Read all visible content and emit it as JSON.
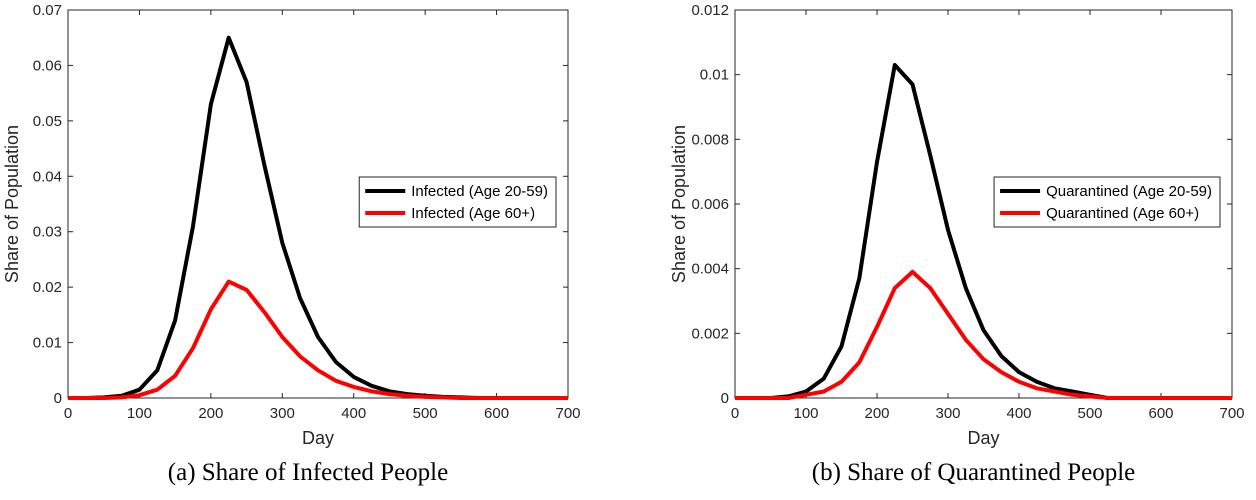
{
  "chart_data": [
    {
      "type": "line",
      "title": "(a) Share of Infected People",
      "xlabel": "Day",
      "ylabel": "Share of Population",
      "x": [
        0,
        25,
        50,
        75,
        100,
        125,
        150,
        175,
        200,
        225,
        250,
        275,
        300,
        325,
        350,
        375,
        400,
        425,
        450,
        475,
        500,
        525,
        550,
        575,
        600,
        625,
        650,
        675,
        700
      ],
      "series": [
        {
          "name": "Infected (Age 20-59)",
          "color": "#000000",
          "values": [
            0,
            0,
            0.0001,
            0.0004,
            0.0015,
            0.005,
            0.014,
            0.031,
            0.053,
            0.065,
            0.057,
            0.042,
            0.028,
            0.018,
            0.011,
            0.0065,
            0.0038,
            0.0022,
            0.0012,
            0.0007,
            0.0004,
            0.0002,
            0.0001,
            0,
            0,
            0,
            0,
            0,
            0
          ]
        },
        {
          "name": "Infected (Age 60+)",
          "color": "#ff0000",
          "values": [
            0,
            0,
            0,
            0.0001,
            0.0005,
            0.0015,
            0.004,
            0.009,
            0.016,
            0.021,
            0.0195,
            0.0155,
            0.011,
            0.0075,
            0.005,
            0.0031,
            0.002,
            0.0012,
            0.0007,
            0.0004,
            0.0002,
            0.0001,
            0,
            0,
            0,
            0,
            0,
            0,
            0
          ]
        }
      ],
      "xlim": [
        0,
        700
      ],
      "xticks": [
        0,
        100,
        200,
        300,
        400,
        500,
        600,
        700
      ],
      "ylim": [
        0,
        0.07
      ],
      "yticks": [
        0,
        0.01,
        0.02,
        0.03,
        0.04,
        0.05,
        0.06,
        0.07
      ],
      "legend": "east",
      "grid": false
    },
    {
      "type": "line",
      "title": "(b) Share of Quarantined People",
      "xlabel": "Day",
      "ylabel": "Share of Population",
      "x": [
        0,
        25,
        50,
        75,
        100,
        125,
        150,
        175,
        200,
        225,
        250,
        275,
        300,
        325,
        350,
        375,
        400,
        425,
        450,
        475,
        500,
        525,
        550,
        575,
        600,
        625,
        650,
        675,
        700
      ],
      "series": [
        {
          "name": "Quarantined (Age 20-59)",
          "color": "#000000",
          "values": [
            0,
            0,
            0,
            5e-05,
            0.0002,
            0.0006,
            0.0016,
            0.0037,
            0.0073,
            0.0103,
            0.0097,
            0.0075,
            0.0052,
            0.0034,
            0.0021,
            0.0013,
            0.0008,
            0.0005,
            0.0003,
            0.0002,
            0.0001,
            0,
            0,
            0,
            0,
            0,
            0,
            0,
            0
          ]
        },
        {
          "name": "Quarantined (Age 60+)",
          "color": "#ff0000",
          "values": [
            0,
            0,
            0,
            0,
            0.0001,
            0.0002,
            0.0005,
            0.0011,
            0.0022,
            0.0034,
            0.0039,
            0.0034,
            0.0026,
            0.0018,
            0.0012,
            0.0008,
            0.0005,
            0.0003,
            0.0002,
            0.0001,
            5e-05,
            0,
            0,
            0,
            0,
            0,
            0,
            0,
            0
          ]
        }
      ],
      "xlim": [
        0,
        700
      ],
      "xticks": [
        0,
        100,
        200,
        300,
        400,
        500,
        600,
        700
      ],
      "ylim": [
        0,
        0.012
      ],
      "yticks": [
        0,
        0.002,
        0.004,
        0.006,
        0.008,
        0.01,
        0.012
      ],
      "legend": "east",
      "grid": false
    }
  ]
}
